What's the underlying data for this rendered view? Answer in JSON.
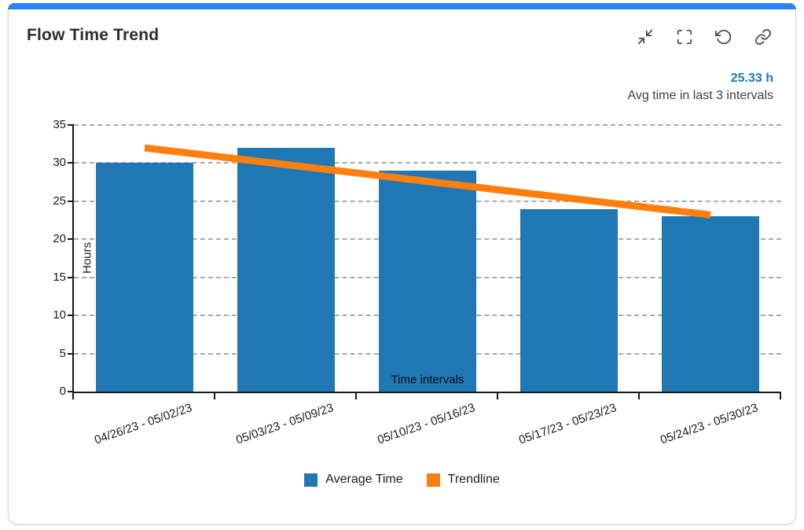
{
  "card": {
    "title": "Flow Time Trend",
    "accent_color": "#2e80f6",
    "toolbar_icons": [
      "collapse-icon",
      "fullscreen-icon",
      "refresh-icon",
      "link-icon"
    ],
    "stat": {
      "value": "25.33 h",
      "caption": "Avg time in last 3 intervals",
      "value_color": "#1b79c0"
    }
  },
  "chart_data": {
    "type": "bar",
    "title": "Flow Time Trend",
    "categories": [
      "04/26/23 - 05/02/23",
      "05/03/23 - 05/09/23",
      "05/10/23 - 05/16/23",
      "05/17/23 - 05/23/23",
      "05/24/23 - 05/30/23"
    ],
    "series": [
      {
        "name": "Average Time",
        "type": "bar",
        "color": "#1f77b4",
        "values": [
          30,
          32,
          29,
          24,
          23
        ]
      },
      {
        "name": "Trendline",
        "type": "line",
        "color": "#ff7f0e",
        "values": [
          32,
          29.8,
          27.6,
          25.4,
          23.2
        ]
      }
    ],
    "xlabel": "Time intervals",
    "ylabel": "Hours",
    "ylim": [
      0,
      35
    ],
    "yticks": [
      0,
      5,
      10,
      15,
      20,
      25,
      30,
      35
    ],
    "grid": "dashed-horizontal",
    "legend_position": "bottom"
  }
}
